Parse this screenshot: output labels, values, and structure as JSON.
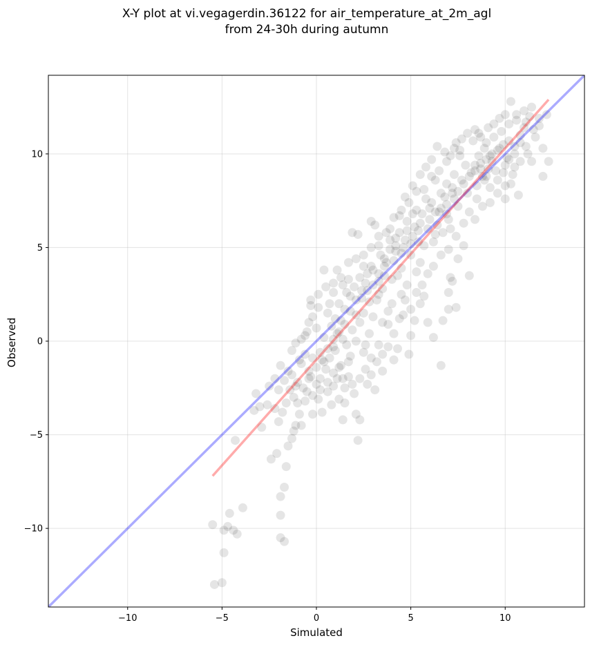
{
  "chart_data": {
    "type": "scatter",
    "title": "X-Y plot at vi.vegagerdin.36122 for air_temperature_at_2m_agl",
    "subtitle": "from 24-30h during autumn",
    "xlabel": "Simulated",
    "ylabel": "Observed",
    "xlim": [
      -14.2,
      14.2
    ],
    "ylim": [
      -14.2,
      14.2
    ],
    "xticks": [
      -10,
      -5,
      0,
      5,
      10
    ],
    "yticks": [
      -10,
      -5,
      0,
      5,
      10
    ],
    "xtick_labels": [
      "−10",
      "−5",
      "0",
      "5",
      "10"
    ],
    "ytick_labels": [
      "−10",
      "−5",
      "0",
      "5",
      "10"
    ],
    "grid": true,
    "point_color": "#000000",
    "point_alpha": 0.1,
    "identity_line": {
      "x": [
        -14.2,
        14.2
      ],
      "y": [
        -14.2,
        14.2
      ],
      "color": "#0000ff"
    },
    "fit_line": {
      "x": [
        -5.5,
        12.3
      ],
      "y": [
        -7.2,
        12.9
      ],
      "color": "#ff0000"
    },
    "points": [
      [
        -5.5,
        -9.8
      ],
      [
        -5.4,
        -13.0
      ],
      [
        -5.0,
        -12.9
      ],
      [
        -4.9,
        -11.3
      ],
      [
        -4.9,
        -10.1
      ],
      [
        -4.7,
        -9.9
      ],
      [
        -4.6,
        -9.2
      ],
      [
        -4.4,
        -10.1
      ],
      [
        -4.2,
        -10.3
      ],
      [
        -3.9,
        -8.9
      ],
      [
        -4.3,
        -5.3
      ],
      [
        -3.2,
        -2.8
      ],
      [
        -3.0,
        -3.5
      ],
      [
        -2.6,
        -3.4
      ],
      [
        -2.4,
        -6.3
      ],
      [
        -2.2,
        -2.0
      ],
      [
        -2.1,
        -6.0
      ],
      [
        -2.0,
        -4.3
      ],
      [
        -1.9,
        -8.3
      ],
      [
        -1.9,
        -9.3
      ],
      [
        -1.9,
        -10.5
      ],
      [
        -1.7,
        -10.7
      ],
      [
        -1.7,
        -7.8
      ],
      [
        -1.6,
        -6.7
      ],
      [
        -1.5,
        -5.6
      ],
      [
        -1.3,
        -5.2
      ],
      [
        -1.2,
        -4.8
      ],
      [
        -1.1,
        -4.5
      ],
      [
        -0.9,
        -3.9
      ],
      [
        -0.8,
        -4.5
      ],
      [
        -1.5,
        -1.6
      ],
      [
        -1.3,
        -0.5
      ],
      [
        -1.1,
        -0.1
      ],
      [
        -0.8,
        0.1
      ],
      [
        -0.6,
        -0.7
      ],
      [
        -0.5,
        0.5
      ],
      [
        -0.4,
        1.0
      ],
      [
        -0.3,
        1.9
      ],
      [
        -0.2,
        1.3
      ],
      [
        0.1,
        1.8
      ],
      [
        0.4,
        3.8
      ],
      [
        0.7,
        2.0
      ],
      [
        0.9,
        3.1
      ],
      [
        1.1,
        3.8
      ],
      [
        1.4,
        3.0
      ],
      [
        1.7,
        4.2
      ],
      [
        1.9,
        5.8
      ],
      [
        2.2,
        5.7
      ],
      [
        2.5,
        4.0
      ],
      [
        2.7,
        2.7
      ],
      [
        2.9,
        6.4
      ],
      [
        3.1,
        6.2
      ],
      [
        3.3,
        5.1
      ],
      [
        3.6,
        4.4
      ],
      [
        3.9,
        5.4
      ],
      [
        4.2,
        5.1
      ],
      [
        4.4,
        6.7
      ],
      [
        4.7,
        7.7
      ],
      [
        5.1,
        8.3
      ],
      [
        5.5,
        8.9
      ],
      [
        5.8,
        9.3
      ],
      [
        6.1,
        9.7
      ],
      [
        6.4,
        10.4
      ],
      [
        6.8,
        10.1
      ],
      [
        7.1,
        9.9
      ],
      [
        7.4,
        10.6
      ],
      [
        7.6,
        10.2
      ],
      [
        8.0,
        11.1
      ],
      [
        8.4,
        11.3
      ],
      [
        8.7,
        10.9
      ],
      [
        9.1,
        11.4
      ],
      [
        9.4,
        11.6
      ],
      [
        9.7,
        11.9
      ],
      [
        10.0,
        12.1
      ],
      [
        10.3,
        12.8
      ],
      [
        10.6,
        11.8
      ],
      [
        11.0,
        12.3
      ],
      [
        11.3,
        12.0
      ],
      [
        11.8,
        11.9
      ],
      [
        12.2,
        12.1
      ],
      [
        12.0,
        10.3
      ],
      [
        12.0,
        8.8
      ],
      [
        12.3,
        9.6
      ],
      [
        11.4,
        9.6
      ],
      [
        10.7,
        7.8
      ],
      [
        10.0,
        7.6
      ],
      [
        9.2,
        8.2
      ],
      [
        8.9,
        8.6
      ],
      [
        8.4,
        6.5
      ],
      [
        8.1,
        3.5
      ],
      [
        7.8,
        5.1
      ],
      [
        7.5,
        4.4
      ],
      [
        7.1,
        3.4
      ],
      [
        7.4,
        1.8
      ],
      [
        7.2,
        3.2
      ],
      [
        7.0,
        2.6
      ],
      [
        7.0,
        1.7
      ],
      [
        6.7,
        1.1
      ],
      [
        6.6,
        -1.3
      ],
      [
        6.2,
        0.2
      ],
      [
        5.9,
        1.0
      ],
      [
        5.7,
        2.4
      ],
      [
        5.5,
        2.0
      ],
      [
        5.2,
        1.1
      ],
      [
        5.0,
        0.3
      ],
      [
        4.9,
        -0.7
      ],
      [
        4.6,
        1.4
      ],
      [
        4.3,
        -0.4
      ],
      [
        4.1,
        -1.0
      ],
      [
        3.8,
        0.9
      ],
      [
        3.5,
        -1.6
      ],
      [
        3.3,
        -0.2
      ],
      [
        3.1,
        -2.6
      ],
      [
        2.9,
        -1.8
      ],
      [
        2.7,
        -2.3
      ],
      [
        2.5,
        -0.6
      ],
      [
        2.3,
        -4.2
      ],
      [
        2.1,
        -3.9
      ],
      [
        2.2,
        -5.3
      ],
      [
        1.9,
        -2.3
      ],
      [
        1.7,
        -1.1
      ],
      [
        1.5,
        -3.3
      ],
      [
        1.4,
        -2.0
      ],
      [
        1.4,
        -4.2
      ],
      [
        1.2,
        -1.4
      ],
      [
        1.0,
        -0.5
      ],
      [
        0.8,
        -3.4
      ],
      [
        0.6,
        -2.7
      ],
      [
        0.3,
        -3.8
      ],
      [
        0.1,
        -3.1
      ],
      [
        0.0,
        -2.3
      ],
      [
        -0.2,
        -2.9
      ],
      [
        -0.2,
        -3.9
      ],
      [
        -0.4,
        -2.0
      ],
      [
        -0.6,
        -3.2
      ],
      [
        -0.8,
        -1.2
      ],
      [
        -1.0,
        -2.2
      ],
      [
        -1.2,
        -3.0
      ],
      [
        -1.4,
        -2.6
      ],
      [
        -1.6,
        -3.3
      ],
      [
        -1.8,
        -3.8
      ],
      [
        -2.0,
        -2.6
      ],
      [
        -2.2,
        -3.6
      ],
      [
        -2.5,
        -2.4
      ],
      [
        -2.9,
        -4.6
      ],
      [
        -3.3,
        -3.7
      ],
      [
        -0.5,
        -2.7
      ],
      [
        0.2,
        -2.0
      ],
      [
        0.5,
        -1.5
      ],
      [
        0.7,
        -0.9
      ],
      [
        0.9,
        -0.3
      ],
      [
        1.1,
        0.4
      ],
      [
        1.3,
        1.1
      ],
      [
        1.5,
        1.7
      ],
      [
        1.8,
        2.4
      ],
      [
        2.0,
        2.9
      ],
      [
        2.3,
        3.4
      ],
      [
        2.5,
        1.5
      ],
      [
        2.8,
        2.1
      ],
      [
        3.0,
        3.0
      ],
      [
        3.3,
        3.6
      ],
      [
        3.5,
        2.8
      ],
      [
        3.7,
        4.2
      ],
      [
        4.0,
        3.3
      ],
      [
        4.2,
        4.8
      ],
      [
        4.5,
        3.9
      ],
      [
        4.7,
        5.4
      ],
      [
        5.0,
        4.6
      ],
      [
        5.2,
        6.1
      ],
      [
        5.4,
        5.3
      ],
      [
        5.6,
        6.8
      ],
      [
        5.9,
        6.0
      ],
      [
        6.1,
        7.4
      ],
      [
        6.3,
        5.7
      ],
      [
        6.5,
        6.9
      ],
      [
        6.8,
        7.7
      ],
      [
        7.0,
        6.5
      ],
      [
        7.2,
        8.2
      ],
      [
        7.5,
        7.2
      ],
      [
        7.7,
        8.6
      ],
      [
        8.0,
        7.9
      ],
      [
        8.2,
        9.0
      ],
      [
        8.5,
        8.3
      ],
      [
        8.7,
        9.5
      ],
      [
        9.0,
        8.8
      ],
      [
        9.2,
        9.9
      ],
      [
        9.5,
        9.1
      ],
      [
        9.7,
        10.3
      ],
      [
        10.0,
        9.4
      ],
      [
        10.2,
        10.7
      ],
      [
        10.5,
        10.0
      ],
      [
        10.8,
        11.0
      ],
      [
        11.1,
        10.4
      ],
      [
        11.5,
        11.3
      ],
      [
        11.8,
        11.5
      ],
      [
        9.3,
        9.6
      ],
      [
        9.1,
        9.2
      ],
      [
        8.8,
        8.8
      ],
      [
        8.6,
        9.9
      ],
      [
        8.4,
        9.1
      ],
      [
        8.9,
        10.3
      ],
      [
        9.6,
        8.6
      ],
      [
        9.9,
        9.0
      ],
      [
        10.1,
        9.8
      ],
      [
        10.3,
        8.4
      ],
      [
        10.5,
        9.3
      ],
      [
        7.9,
        9.4
      ],
      [
        7.6,
        9.9
      ],
      [
        7.3,
        8.9
      ],
      [
        6.9,
        8.4
      ],
      [
        6.6,
        7.9
      ],
      [
        6.3,
        8.6
      ],
      [
        6.0,
        7.1
      ],
      [
        5.8,
        7.6
      ],
      [
        5.5,
        6.3
      ],
      [
        5.3,
        7.0
      ],
      [
        5.1,
        5.6
      ],
      [
        4.8,
        6.4
      ],
      [
        4.6,
        5.0
      ],
      [
        4.4,
        5.8
      ],
      [
        4.1,
        4.3
      ],
      [
        3.9,
        6.0
      ],
      [
        3.6,
        3.5
      ],
      [
        3.4,
        4.6
      ],
      [
        3.2,
        2.2
      ],
      [
        2.9,
        4.0
      ],
      [
        2.6,
        3.1
      ],
      [
        2.4,
        2.3
      ],
      [
        2.1,
        1.4
      ],
      [
        1.9,
        0.6
      ],
      [
        1.6,
        2.6
      ],
      [
        1.4,
        0.1
      ],
      [
        1.2,
        2.0
      ],
      [
        1.0,
        1.2
      ],
      [
        0.8,
        0.8
      ],
      [
        0.6,
        1.5
      ],
      [
        0.4,
        0.2
      ],
      [
        0.2,
        -0.6
      ],
      [
        0.0,
        0.7
      ],
      [
        -0.2,
        -0.9
      ],
      [
        -0.4,
        -1.6
      ],
      [
        -0.6,
        0.3
      ],
      [
        -0.9,
        -1.0
      ],
      [
        -1.1,
        -2.4
      ],
      [
        -1.3,
        -1.8
      ],
      [
        -1.7,
        -2.1
      ],
      [
        -1.9,
        -1.3
      ],
      [
        6.2,
        5.3
      ],
      [
        6.4,
        6.2
      ],
      [
        6.7,
        5.8
      ],
      [
        6.9,
        7.3
      ],
      [
        7.1,
        6.0
      ],
      [
        7.3,
        7.6
      ],
      [
        5.7,
        5.1
      ],
      [
        5.5,
        4.2
      ],
      [
        5.3,
        3.7
      ],
      [
        5.0,
        5.2
      ],
      [
        4.8,
        3.0
      ],
      [
        4.5,
        2.5
      ],
      [
        4.3,
        3.5
      ],
      [
        4.0,
        2.0
      ],
      [
        3.8,
        1.6
      ],
      [
        3.5,
        1.0
      ],
      [
        3.3,
        2.5
      ],
      [
        3.0,
        1.3
      ],
      [
        2.8,
        0.4
      ],
      [
        2.6,
        -0.2
      ],
      [
        2.3,
        1.0
      ],
      [
        2.1,
        0.0
      ],
      [
        1.8,
        -0.8
      ],
      [
        1.6,
        -0.2
      ],
      [
        1.3,
        -1.3
      ],
      [
        1.1,
        -2.0
      ],
      [
        0.9,
        -1.7
      ],
      [
        0.6,
        -2.2
      ],
      [
        0.4,
        -1.1
      ],
      [
        0.2,
        -2.6
      ],
      [
        8.3,
        10.7
      ],
      [
        8.6,
        11.1
      ],
      [
        9.0,
        10.6
      ],
      [
        9.4,
        10.9
      ],
      [
        9.8,
        11.2
      ],
      [
        10.2,
        11.6
      ],
      [
        10.6,
        12.1
      ],
      [
        11.0,
        11.4
      ],
      [
        11.4,
        12.5
      ],
      [
        7.7,
        10.8
      ],
      [
        7.3,
        10.3
      ],
      [
        6.9,
        9.6
      ],
      [
        6.5,
        9.1
      ],
      [
        6.1,
        8.8
      ],
      [
        5.7,
        8.1
      ],
      [
        5.3,
        8.0
      ],
      [
        4.9,
        7.4
      ],
      [
        4.5,
        7.0
      ],
      [
        4.1,
        6.6
      ],
      [
        3.7,
        5.8
      ],
      [
        3.3,
        5.6
      ],
      [
        2.9,
        5.0
      ],
      [
        2.5,
        4.6
      ],
      [
        2.1,
        4.4
      ],
      [
        1.7,
        3.3
      ],
      [
        1.3,
        3.4
      ],
      [
        0.9,
        2.6
      ],
      [
        0.5,
        2.9
      ],
      [
        0.1,
        2.5
      ],
      [
        -0.3,
        2.2
      ],
      [
        9.2,
        7.4
      ],
      [
        9.6,
        7.9
      ],
      [
        10.0,
        8.3
      ],
      [
        10.4,
        8.9
      ],
      [
        10.8,
        9.6
      ],
      [
        11.2,
        10.0
      ],
      [
        11.6,
        10.9
      ],
      [
        8.8,
        7.2
      ],
      [
        8.5,
        7.6
      ],
      [
        8.1,
        6.9
      ],
      [
        7.8,
        6.3
      ],
      [
        7.4,
        5.6
      ],
      [
        7.0,
        4.9
      ],
      [
        6.6,
        4.6
      ],
      [
        6.2,
        4.0
      ],
      [
        5.9,
        3.6
      ],
      [
        5.6,
        3.0
      ],
      [
        5.3,
        2.6
      ],
      [
        5.0,
        1.7
      ],
      [
        4.7,
        2.2
      ],
      [
        4.4,
        1.2
      ],
      [
        4.1,
        0.4
      ],
      [
        3.8,
        -0.3
      ],
      [
        3.5,
        -0.7
      ],
      [
        3.2,
        -1.1
      ],
      [
        2.9,
        -0.9
      ],
      [
        2.6,
        -1.5
      ],
      [
        2.3,
        -2.0
      ],
      [
        2.0,
        -2.8
      ],
      [
        1.7,
        -1.9
      ],
      [
        1.5,
        -2.5
      ],
      [
        1.2,
        -3.1
      ],
      [
        0.9,
        -2.4
      ],
      [
        6.0,
        6.5
      ],
      [
        6.3,
        6.9
      ],
      [
        6.6,
        7.1
      ],
      [
        6.9,
        6.8
      ],
      [
        7.2,
        7.9
      ],
      [
        7.5,
        8.0
      ],
      [
        7.8,
        8.4
      ],
      [
        8.1,
        8.8
      ],
      [
        8.4,
        9.4
      ],
      [
        8.7,
        9.2
      ],
      [
        9.0,
        9.7
      ],
      [
        9.3,
        10.0
      ],
      [
        9.6,
        10.2
      ],
      [
        9.9,
        10.5
      ],
      [
        10.2,
        9.7
      ],
      [
        10.5,
        10.4
      ],
      [
        10.8,
        10.6
      ],
      [
        11.1,
        11.7
      ],
      [
        5.4,
        5.9
      ],
      [
        5.1,
        6.8
      ],
      [
        4.8,
        5.9
      ],
      [
        4.5,
        4.7
      ],
      [
        4.2,
        5.5
      ],
      [
        3.9,
        4.9
      ],
      [
        3.6,
        4.0
      ],
      [
        3.3,
        3.2
      ],
      [
        3.0,
        3.8
      ],
      [
        2.7,
        3.6
      ],
      [
        2.4,
        2.7
      ],
      [
        2.1,
        2.2
      ],
      [
        1.8,
        1.6
      ],
      [
        1.5,
        0.9
      ],
      [
        1.2,
        0.5
      ],
      [
        0.9,
        0.1
      ],
      [
        0.6,
        -0.4
      ],
      [
        0.3,
        -1.0
      ],
      [
        0.0,
        -1.4
      ],
      [
        -0.3,
        -1.9
      ],
      [
        -0.7,
        -2.5
      ],
      [
        -1.0,
        -3.3
      ]
    ]
  }
}
